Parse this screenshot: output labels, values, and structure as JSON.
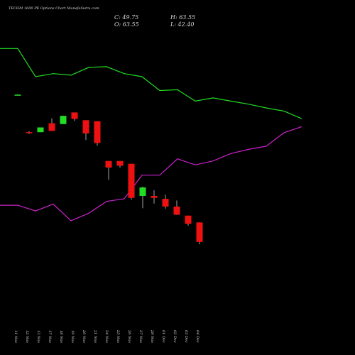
{
  "header": {
    "title": "TECHM 1600 PE Options Chart MunafaSutra.com",
    "close": "C: 49.75",
    "open": "O: 63.55",
    "high": "H: 63.55",
    "low": "L: 42.40"
  },
  "chart_data": {
    "type": "candlestick",
    "categories": [
      "11 Nov",
      "12 Nov",
      "13 Nov",
      "17 Nov",
      "18 Nov",
      "19 Nov",
      "20 Nov",
      "21 Nov",
      "24 Nov",
      "25 Nov",
      "26 Nov",
      "27 Nov",
      "28 Nov",
      "01 Dec",
      "02 Dec",
      "03 Dec",
      "04 Dec"
    ],
    "candles": [
      {
        "o": 115.0,
        "h": 115.2,
        "l": 114.8,
        "c": 115.0,
        "color": "green"
      },
      {
        "o": 95.2,
        "h": 95.7,
        "l": 94.2,
        "c": 94.7,
        "color": "red"
      },
      {
        "o": 95.2,
        "h": 97.7,
        "l": 95.2,
        "c": 97.7,
        "color": "green"
      },
      {
        "o": 99.9,
        "h": 102.5,
        "l": 95.9,
        "c": 95.9,
        "color": "red"
      },
      {
        "o": 99.5,
        "h": 104.0,
        "l": 99.5,
        "c": 103.8,
        "color": "green"
      },
      {
        "o": 105.6,
        "h": 105.6,
        "l": 101.1,
        "c": 102.2,
        "color": "red"
      },
      {
        "o": 101.5,
        "h": 101.5,
        "l": 91.0,
        "c": 94.5,
        "color": "red"
      },
      {
        "o": 101.0,
        "h": 101.0,
        "l": 88.0,
        "c": 89.5,
        "color": "red"
      },
      {
        "o": 80.0,
        "h": 80.0,
        "l": 70.0,
        "c": 76.5,
        "color": "red"
      },
      {
        "o": 80.0,
        "h": 80.0,
        "l": 76.5,
        "c": 77.5,
        "color": "red"
      },
      {
        "o": 78.5,
        "h": 78.5,
        "l": 59.5,
        "c": 60.5,
        "color": "red"
      },
      {
        "o": 61.5,
        "h": 66.5,
        "l": 55.0,
        "c": 66.0,
        "color": "green"
      },
      {
        "o": 61.5,
        "h": 64.5,
        "l": 57.5,
        "c": 60.5,
        "color": "red"
      },
      {
        "o": 60.0,
        "h": 62.2,
        "l": 54.8,
        "c": 55.9,
        "color": "red"
      },
      {
        "o": 55.9,
        "h": 59.1,
        "l": 51.4,
        "c": 51.6,
        "color": "red"
      },
      {
        "o": 51.1,
        "h": 51.1,
        "l": 45.8,
        "c": 46.8,
        "color": "red"
      },
      {
        "o": 47.5,
        "h": 47.5,
        "l": 36.0,
        "c": 37.2,
        "color": "red"
      }
    ],
    "lines": [
      {
        "color": "#22dd22",
        "x": [
          0,
          1,
          2,
          3,
          4,
          5,
          6,
          7,
          8,
          9,
          10,
          11,
          12,
          13,
          14,
          15,
          16,
          17
        ],
        "y": [
          139.4,
          139.4,
          124.5,
          126.1,
          125.3,
          129.4,
          129.8,
          126.1,
          124.5,
          117.2,
          117.6,
          111.6,
          113.3,
          111.6,
          110.0,
          108.0,
          106.3,
          102.3
        ]
      },
      {
        "color": "#cc22cc",
        "x": [
          0,
          1,
          2,
          3,
          4,
          5,
          6,
          7,
          8,
          9,
          10,
          11,
          12,
          13,
          14,
          15,
          16,
          17
        ],
        "y": [
          56.6,
          56.6,
          53.6,
          57.2,
          48.4,
          52.4,
          58.6,
          60.0,
          72.5,
          72.5,
          81.1,
          77.9,
          80.0,
          83.9,
          86.1,
          87.8,
          94.9,
          98.1
        ]
      }
    ],
    "ylim": [
      0,
      150
    ],
    "grid": false
  }
}
